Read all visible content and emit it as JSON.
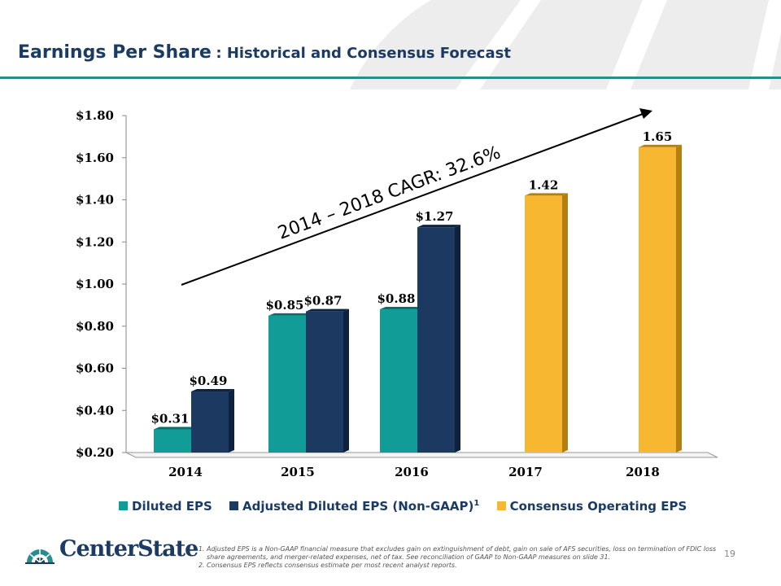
{
  "slide": {
    "title_main": "Earnings Per Share",
    "title_sub": ": Historical and Consensus Forecast",
    "page_number": "19"
  },
  "brand": {
    "name": "CenterState",
    "accent": "#2a8c8f",
    "navy": "#1c3b63",
    "gold": "#f7b731"
  },
  "chart_data": {
    "type": "bar",
    "categories": [
      "2014",
      "2015",
      "2016",
      "2017",
      "2018"
    ],
    "series": [
      {
        "name": "Diluted EPS",
        "color": "#119c98",
        "values": [
          0.31,
          0.85,
          0.88,
          null,
          null
        ],
        "labels": [
          "$0.31",
          "$0.85",
          "$0.88",
          "",
          ""
        ]
      },
      {
        "name": "Adjusted Diluted EPS (Non-GAAP)",
        "superscript": "1",
        "color": "#1c3a61",
        "values": [
          0.49,
          0.87,
          1.27,
          null,
          null
        ],
        "labels": [
          "$0.49",
          "$0.87",
          "$1.27",
          "",
          ""
        ]
      },
      {
        "name": "Consensus Operating EPS",
        "color": "#f7b731",
        "values": [
          null,
          null,
          null,
          1.42,
          1.65
        ],
        "labels": [
          "",
          "",
          "",
          "1.42",
          "1.65"
        ]
      }
    ],
    "y_ticks": [
      "$1.80",
      "$1.60",
      "$1.40",
      "$1.20",
      "$1.00",
      "$0.80",
      "$0.60",
      "$0.40",
      "$0.20"
    ],
    "ylim": [
      0.2,
      1.8
    ],
    "annotation": "2014 – 2018  CAGR: 32.6%",
    "legend_position": "bottom"
  },
  "footnotes": [
    "Adjusted EPS is a Non-GAAP financial measure that excludes gain on extinguishment of debt, gain on sale of AFS securities, loss on termination of FDIC loss share agreements, and merger-related expenses, net of tax.  See reconciliation of GAAP to Non-GAAP measures on slide 31.",
    "Consensus EPS reflects  consensus estimate per most recent analyst reports."
  ]
}
